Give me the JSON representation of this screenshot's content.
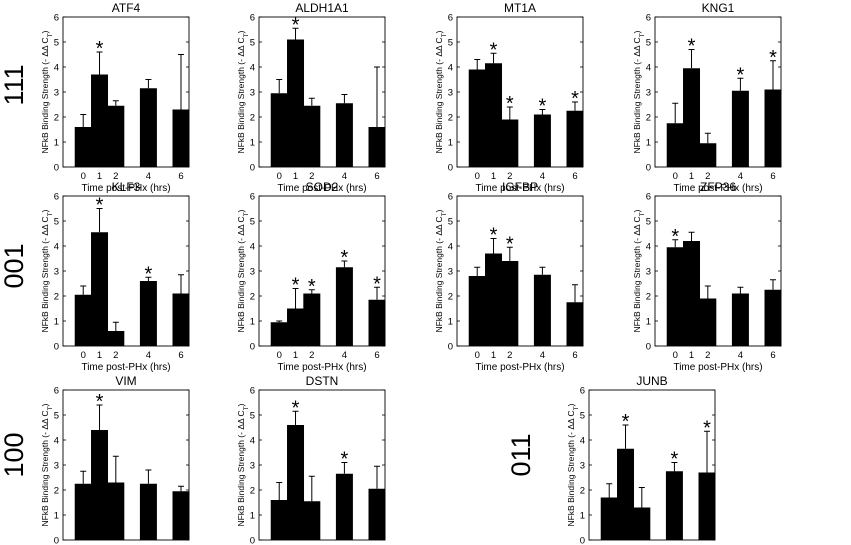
{
  "figure": {
    "common": {
      "xlabel": "Time post-PHx (hrs)",
      "ylabel": "NFkB Binding Strength (- ΔΔ C",
      "ylabel_subscript": "T",
      "ylabel_close": ")",
      "x_ticks": [
        "0",
        "1",
        "2",
        "4",
        "6"
      ],
      "y_ticks": [
        "0",
        "1",
        "2",
        "3",
        "4",
        "5",
        "6"
      ],
      "significance_marker": "*",
      "bar_color": "#000000"
    },
    "row_labels": [
      "111",
      "001",
      "100",
      "011"
    ]
  },
  "chart_data": [
    {
      "type": "bar",
      "title": "ATF4",
      "row": "111",
      "xlabel": "Time post-PHx (hrs)",
      "ylabel": "NFkB Binding Strength (- ΔΔ CT)",
      "ylim": [
        0,
        6
      ],
      "categories": [
        0,
        1,
        2,
        4,
        6
      ],
      "values": [
        1.6,
        3.7,
        2.45,
        3.15,
        2.3
      ],
      "errors": [
        0.5,
        0.9,
        0.2,
        0.35,
        2.2
      ],
      "significant": [
        false,
        true,
        false,
        false,
        false
      ]
    },
    {
      "type": "bar",
      "title": "ALDH1A1",
      "row": "111",
      "xlabel": "Time post-PHx (hrs)",
      "ylabel": "NFkB Binding Strength (- ΔΔ CT)",
      "ylim": [
        0,
        6
      ],
      "categories": [
        0,
        1,
        2,
        4,
        6
      ],
      "values": [
        2.95,
        5.1,
        2.45,
        2.55,
        1.6
      ],
      "errors": [
        0.55,
        0.45,
        0.3,
        0.35,
        2.4
      ],
      "significant": [
        false,
        true,
        false,
        false,
        false
      ]
    },
    {
      "type": "bar",
      "title": "MT1A",
      "row": "111",
      "xlabel": "Time post-PHx (hrs)",
      "ylabel": "NFkB Binding Strength (- ΔΔ CT)",
      "ylim": [
        0,
        6
      ],
      "categories": [
        0,
        1,
        2,
        4,
        6
      ],
      "values": [
        3.9,
        4.15,
        1.9,
        2.1,
        2.25
      ],
      "errors": [
        0.4,
        0.4,
        0.5,
        0.2,
        0.35
      ],
      "significant": [
        false,
        true,
        true,
        true,
        true
      ]
    },
    {
      "type": "bar",
      "title": "KNG1",
      "row": "111",
      "xlabel": "Time post-PHx (hrs)",
      "ylabel": "NFkB Binding Strength (- ΔΔ CT)",
      "ylim": [
        0,
        6
      ],
      "categories": [
        0,
        1,
        2,
        4,
        6
      ],
      "values": [
        1.75,
        3.95,
        0.95,
        3.05,
        3.1
      ],
      "errors": [
        0.8,
        0.75,
        0.4,
        0.5,
        1.15
      ],
      "significant": [
        false,
        true,
        false,
        true,
        true
      ]
    },
    {
      "type": "bar",
      "title": "KLF3",
      "row": "001",
      "xlabel": "Time post-PHx (hrs)",
      "ylabel": "NFkB Binding Strength (- ΔΔ CT)",
      "ylim": [
        0,
        6
      ],
      "categories": [
        0,
        1,
        2,
        4,
        6
      ],
      "values": [
        2.05,
        4.55,
        0.6,
        2.6,
        2.1
      ],
      "errors": [
        0.35,
        0.95,
        0.35,
        0.15,
        0.75
      ],
      "significant": [
        false,
        true,
        false,
        true,
        false
      ]
    },
    {
      "type": "bar",
      "title": "SOD2",
      "row": "001",
      "xlabel": "Time post-PHx (hrs)",
      "ylabel": "NFkB Binding Strength (- ΔΔ CT)",
      "ylim": [
        0,
        6
      ],
      "categories": [
        0,
        1,
        2,
        4,
        6
      ],
      "values": [
        0.95,
        1.5,
        2.1,
        3.15,
        1.85
      ],
      "errors": [
        0.05,
        0.8,
        0.15,
        0.25,
        0.5
      ],
      "significant": [
        false,
        true,
        true,
        true,
        true
      ]
    },
    {
      "type": "bar",
      "title": "IGFBP",
      "row": "001",
      "xlabel": "Time post-PHx (hrs)",
      "ylabel": "NFkB Binding Strength (- ΔΔ CT)",
      "ylim": [
        0,
        6
      ],
      "categories": [
        0,
        1,
        2,
        4,
        6
      ],
      "values": [
        2.8,
        3.7,
        3.4,
        2.85,
        1.75
      ],
      "errors": [
        0.35,
        0.6,
        0.55,
        0.3,
        0.7
      ],
      "significant": [
        false,
        true,
        true,
        false,
        false
      ]
    },
    {
      "type": "bar",
      "title": "ZFP36",
      "row": "001",
      "xlabel": "Time post-PHx (hrs)",
      "ylabel": "NFkB Binding Strength (- ΔΔ CT)",
      "ylim": [
        0,
        6
      ],
      "categories": [
        0,
        1,
        2,
        4,
        6
      ],
      "values": [
        3.95,
        4.2,
        1.9,
        2.1,
        2.25
      ],
      "errors": [
        0.3,
        0.35,
        0.5,
        0.25,
        0.4
      ],
      "significant": [
        true,
        false,
        false,
        false,
        false
      ]
    },
    {
      "type": "bar",
      "title": "VIM",
      "row": "100",
      "xlabel": "Time post-PHx (hrs)",
      "ylabel": "NFkB Binding Strength (- ΔΔ CT)",
      "ylim": [
        0,
        6
      ],
      "categories": [
        0,
        1,
        2,
        4,
        6
      ],
      "values": [
        2.25,
        4.4,
        2.3,
        2.25,
        1.95
      ],
      "errors": [
        0.5,
        1.0,
        1.05,
        0.55,
        0.2
      ],
      "significant": [
        false,
        true,
        false,
        false,
        false
      ]
    },
    {
      "type": "bar",
      "title": "DSTN",
      "row": "100",
      "xlabel": "Time post-PHx (hrs)",
      "ylabel": "NFkB Binding Strength (- ΔΔ CT)",
      "ylim": [
        0,
        6
      ],
      "categories": [
        0,
        1,
        2,
        4,
        6
      ],
      "values": [
        1.6,
        4.6,
        1.55,
        2.65,
        2.05
      ],
      "errors": [
        0.7,
        0.55,
        1.0,
        0.45,
        0.9
      ],
      "significant": [
        false,
        true,
        false,
        true,
        false
      ]
    },
    {
      "type": "bar",
      "title": "JUNB",
      "row": "011",
      "xlabel": "Time post-PHx (hrs)",
      "ylabel": "NFkB Binding Strength (- ΔΔ CT)",
      "ylim": [
        0,
        6
      ],
      "categories": [
        0,
        1,
        2,
        4,
        6
      ],
      "values": [
        1.7,
        3.65,
        1.3,
        2.75,
        2.7
      ],
      "errors": [
        0.55,
        0.95,
        0.8,
        0.35,
        1.65
      ],
      "significant": [
        false,
        true,
        false,
        true,
        true
      ]
    }
  ]
}
